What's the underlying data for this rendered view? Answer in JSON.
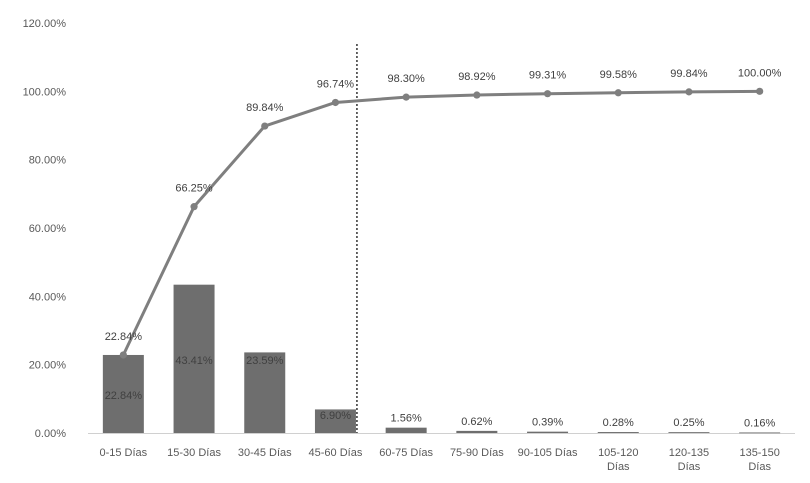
{
  "chart_data": {
    "type": "bar",
    "categories": [
      "0-15 Días",
      "15-30 Días",
      "30-45 Días",
      "45-60 Días",
      "60-75 Días",
      "75-90 Días",
      "90-105 Días",
      "105-120 Días",
      "120-135 Días",
      "135-150 Días"
    ],
    "series": [
      {
        "type": "bar",
        "values": [
          22.84,
          43.41,
          23.59,
          6.9,
          1.56,
          0.62,
          0.39,
          0.28,
          0.25,
          0.16
        ],
        "labels": [
          "22.84%",
          "43.41%",
          "23.59%",
          "6.90%",
          "1.56%",
          "0.62%",
          "0.39%",
          "0.28%",
          "0.25%",
          "0.16%"
        ],
        "color": "#6e6e6e"
      },
      {
        "type": "line",
        "values": [
          22.84,
          66.25,
          89.84,
          96.74,
          98.3,
          98.92,
          99.31,
          99.58,
          99.84,
          100.0
        ],
        "labels": [
          "22.84%",
          "66.25%",
          "89.84%",
          "96.74%",
          "98.30%",
          "98.92%",
          "99.31%",
          "99.58%",
          "99.84%",
          "100.00%"
        ],
        "color": "#7f7f7f"
      }
    ],
    "y_ticks": [
      "0.00%",
      "20.00%",
      "40.00%",
      "60.00%",
      "80.00%",
      "100.00%",
      "120.00%"
    ],
    "ylim": [
      0,
      120
    ],
    "reference_line_after_category": "45-60 Días",
    "title": "",
    "xlabel": "",
    "ylabel": "",
    "grid": false,
    "legend": "none"
  }
}
